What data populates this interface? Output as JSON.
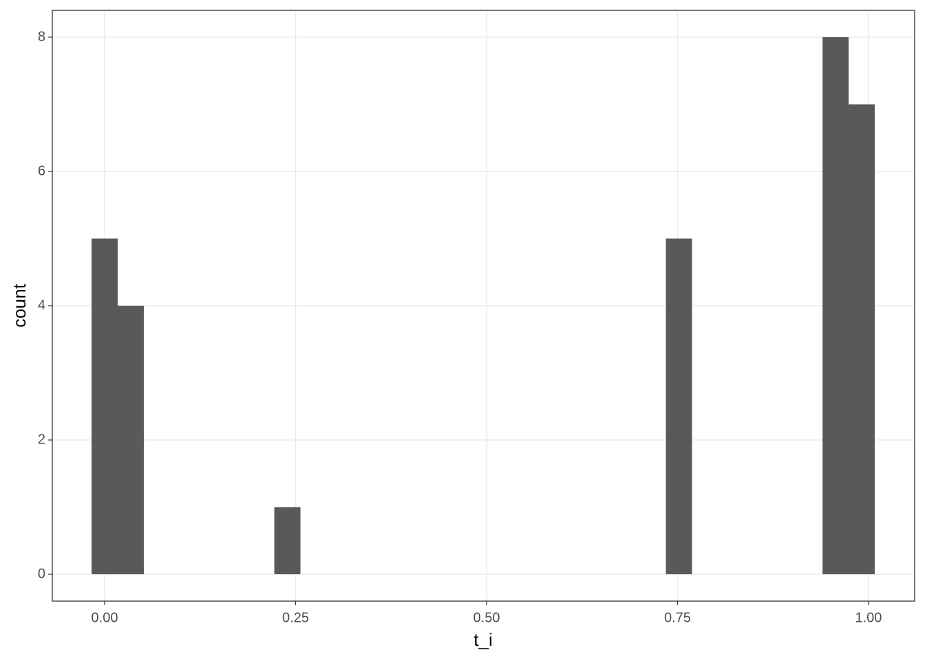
{
  "chart_data": {
    "type": "histogram",
    "x_label": "t_i",
    "y_label": "count",
    "bins": [
      -0.0171,
      0.0171,
      0.0513,
      0.0854,
      0.1196,
      0.1538,
      0.188,
      0.2221,
      0.2563,
      0.2905,
      0.3246,
      0.3588,
      0.393,
      0.4272,
      0.4613,
      0.4955,
      0.5297,
      0.5639,
      0.598,
      0.6322,
      0.6664,
      0.7006,
      0.7347,
      0.7689,
      0.8031,
      0.8372,
      0.8714,
      0.9056,
      0.9398,
      0.9739,
      1.0081
    ],
    "values": [
      5,
      4,
      0,
      0,
      0,
      0,
      0,
      1,
      0,
      0,
      0,
      0,
      0,
      0,
      0,
      0,
      0,
      0,
      0,
      0,
      0,
      0,
      5,
      0,
      0,
      0,
      0,
      0,
      8,
      7
    ],
    "color": "#595959",
    "xlim": [
      -0.0685,
      1.0604
    ],
    "ylim": [
      -0.4,
      8.4
    ],
    "xticks": [
      {
        "value": 0,
        "label": "0.00"
      },
      {
        "value": 0.25,
        "label": "0.25"
      },
      {
        "value": 0.5,
        "label": "0.50"
      },
      {
        "value": 0.75,
        "label": "0.75"
      },
      {
        "value": 1,
        "label": "1.00"
      }
    ],
    "yticks": [
      0,
      2,
      4,
      6,
      8
    ],
    "grid": true
  }
}
